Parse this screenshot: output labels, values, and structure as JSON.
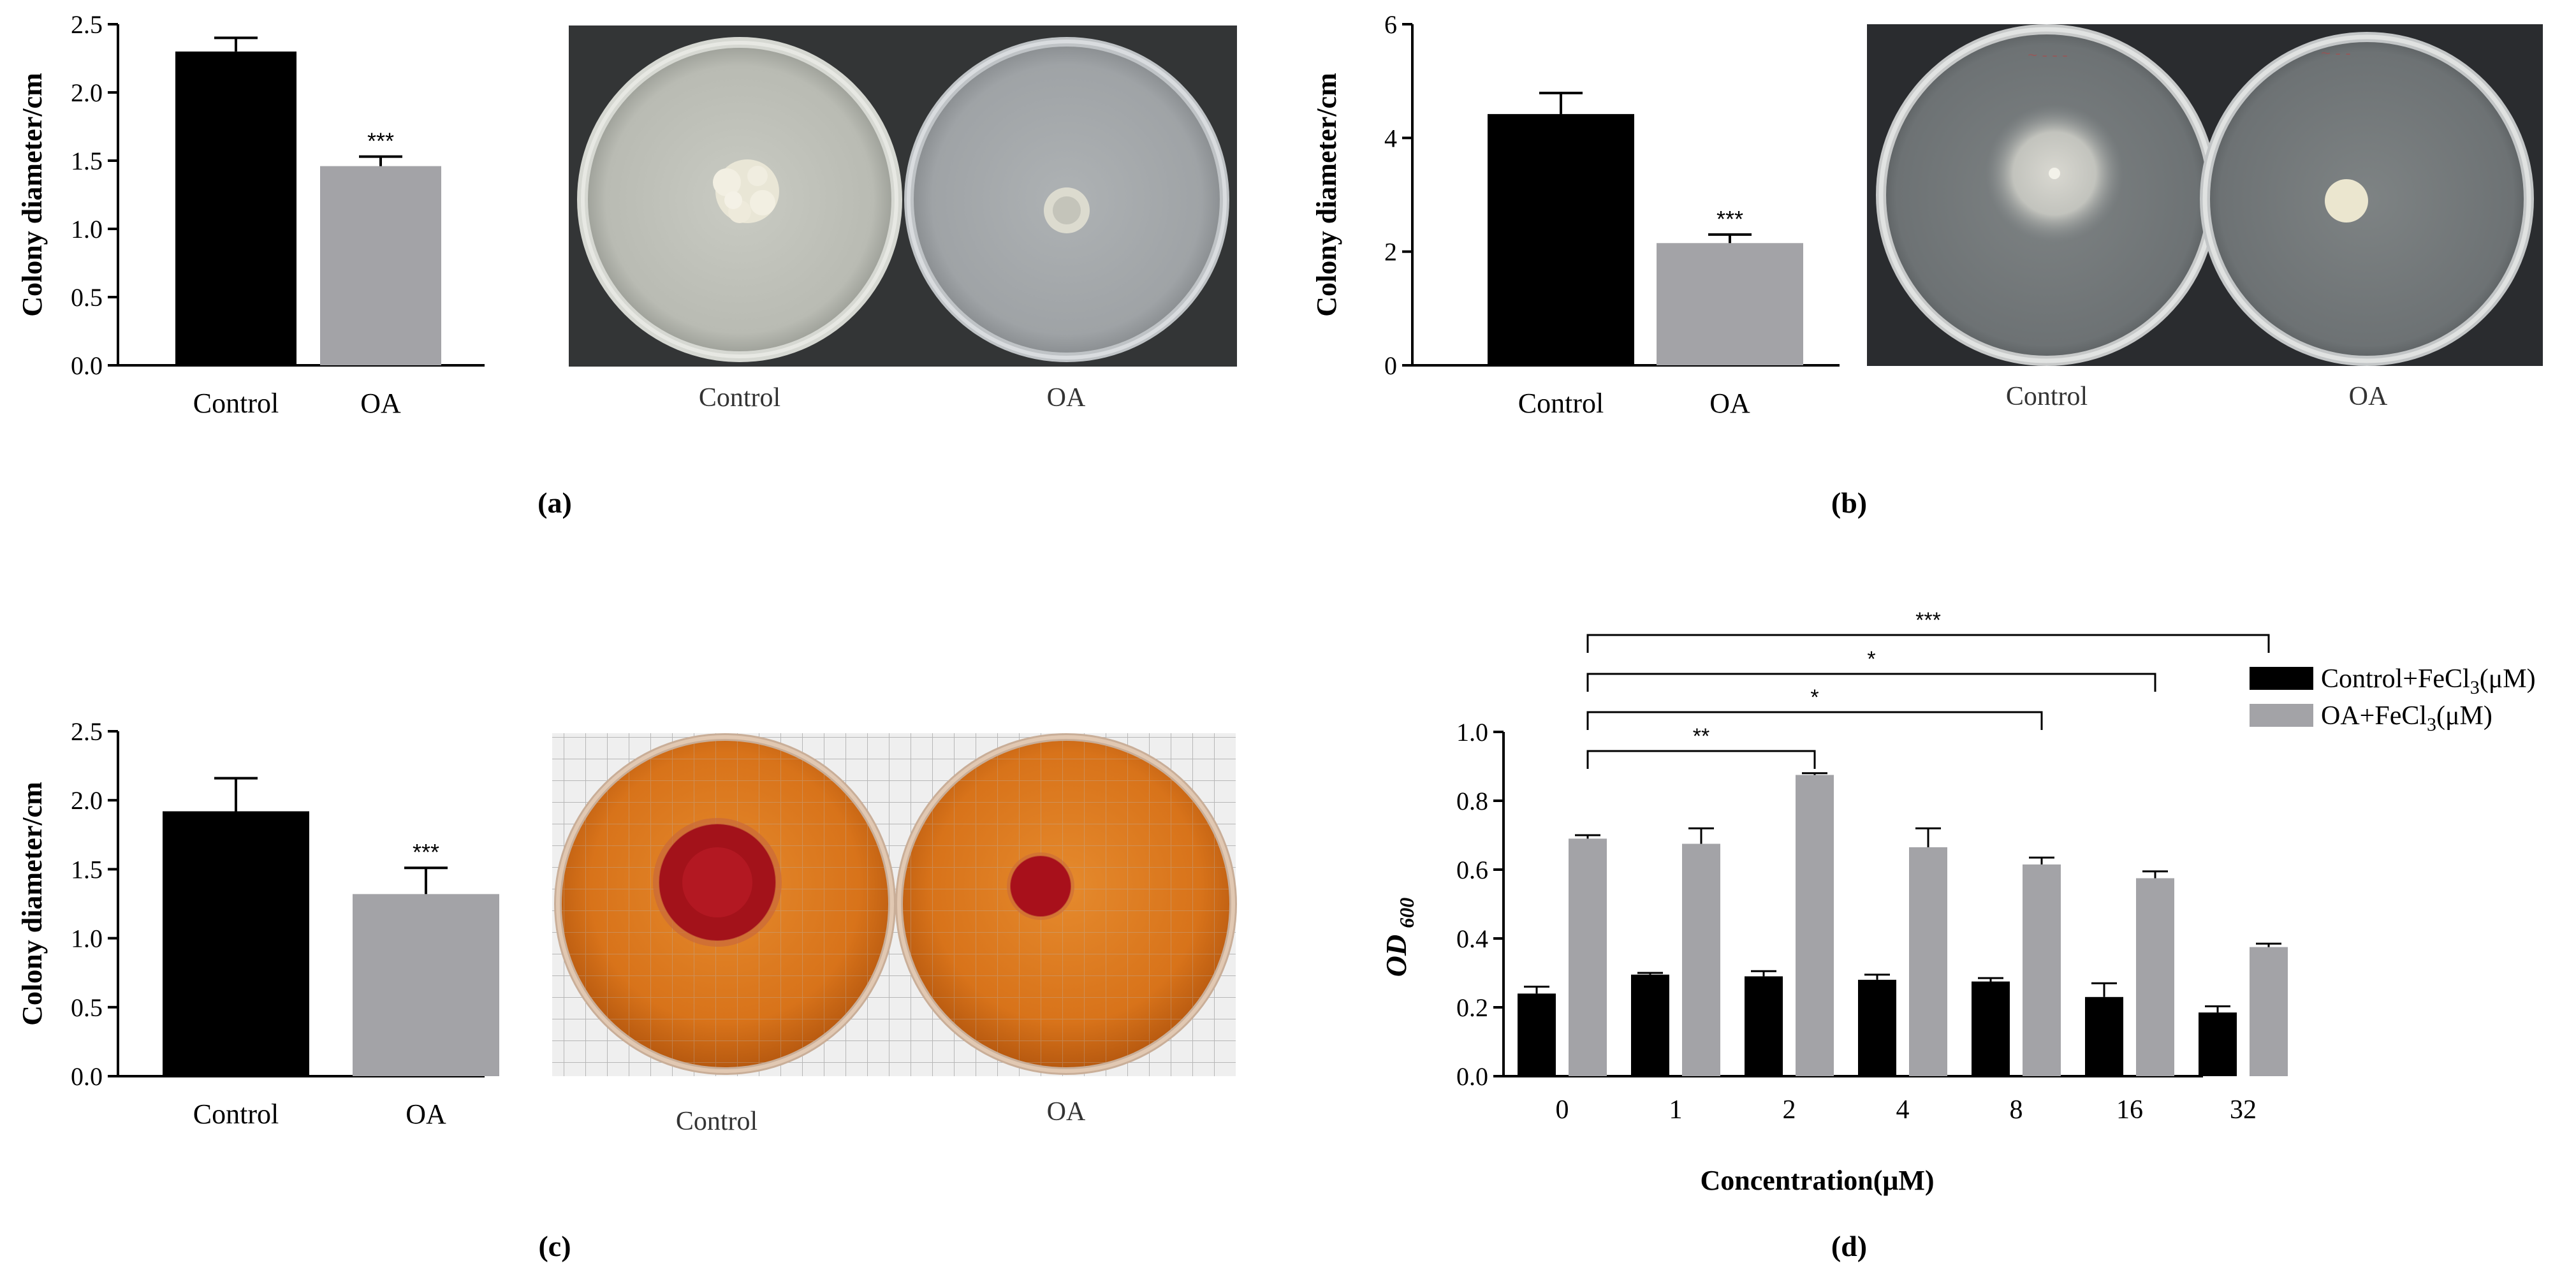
{
  "colors": {
    "control": "#000000",
    "oa": "#a3a3a7",
    "axis": "#000000"
  },
  "charts": {
    "a": {
      "type": "bar",
      "ylabel": "Colony diameter/cm",
      "ylim": [
        0,
        2.5
      ],
      "ticks": [
        "0.0",
        "0.5",
        "1.0",
        "1.5",
        "2.0",
        "2.5"
      ],
      "categories": [
        "Control",
        "OA"
      ],
      "values": [
        2.3,
        1.46
      ],
      "errors": [
        0.1,
        0.07
      ],
      "sig": [
        "",
        "***"
      ]
    },
    "b": {
      "type": "bar",
      "ylabel": "Colony diameter/cm",
      "ylim": [
        0,
        6
      ],
      "ticks": [
        "0",
        "2",
        "4",
        "6"
      ],
      "categories": [
        "Control",
        "OA"
      ],
      "values": [
        4.42,
        2.15
      ],
      "errors": [
        0.37,
        0.15
      ],
      "sig": [
        "",
        "***"
      ]
    },
    "c": {
      "type": "bar",
      "ylabel": "Colony diameter/cm",
      "ylim": [
        0,
        2.5
      ],
      "ticks": [
        "0.0",
        "0.5",
        "1.0",
        "1.5",
        "2.0",
        "2.5"
      ],
      "categories": [
        "Control",
        "OA"
      ],
      "values": [
        1.92,
        1.32
      ],
      "errors": [
        0.24,
        0.19
      ],
      "sig": [
        "",
        "***"
      ]
    }
  },
  "chart_data": {
    "type": "bar",
    "ylabel": "OD 600",
    "xlabel": "Concentration(μM)",
    "ylim": [
      0,
      1.0
    ],
    "ticks": [
      "0.0",
      "0.2",
      "0.4",
      "0.6",
      "0.8",
      "1.0"
    ],
    "categories": [
      "0",
      "1",
      "2",
      "4",
      "8",
      "16",
      "32"
    ],
    "series": [
      {
        "name": "Control+FeCl3(μM)",
        "values": [
          0.24,
          0.295,
          0.29,
          0.28,
          0.275,
          0.23,
          0.185
        ],
        "errors": [
          0.02,
          0.005,
          0.015,
          0.015,
          0.01,
          0.04,
          0.018
        ]
      },
      {
        "name": "OA+FeCl3(μM)",
        "values": [
          0.69,
          0.675,
          0.875,
          0.665,
          0.615,
          0.575,
          0.375
        ],
        "errors": [
          0.01,
          0.045,
          0.005,
          0.055,
          0.02,
          0.02,
          0.01
        ]
      }
    ],
    "comparisons": [
      {
        "from": "0",
        "to": "2",
        "label": "**"
      },
      {
        "from": "0",
        "to": "8",
        "label": "*"
      },
      {
        "from": "0",
        "to": "16",
        "label": "*"
      },
      {
        "from": "0",
        "to": "32",
        "label": "***"
      }
    ],
    "legend": {
      "placement": "right",
      "control_main": "Control+FeCl",
      "control_sub": "3",
      "control_tail": "(μM)",
      "oa_main": "OA+FeCl",
      "oa_sub": "3",
      "oa_tail": "(μM)"
    },
    "ylabel_main": "OD",
    "ylabel_sub": "600"
  },
  "plates": {
    "a": {
      "left": "Control",
      "right": "OA"
    },
    "b": {
      "left": "Control",
      "right": "OA"
    },
    "c": {
      "left": "Control",
      "right": "OA"
    }
  },
  "panel_labels": {
    "a": "(a)",
    "b": "(b)",
    "c": "(c)",
    "d": "(d)"
  }
}
